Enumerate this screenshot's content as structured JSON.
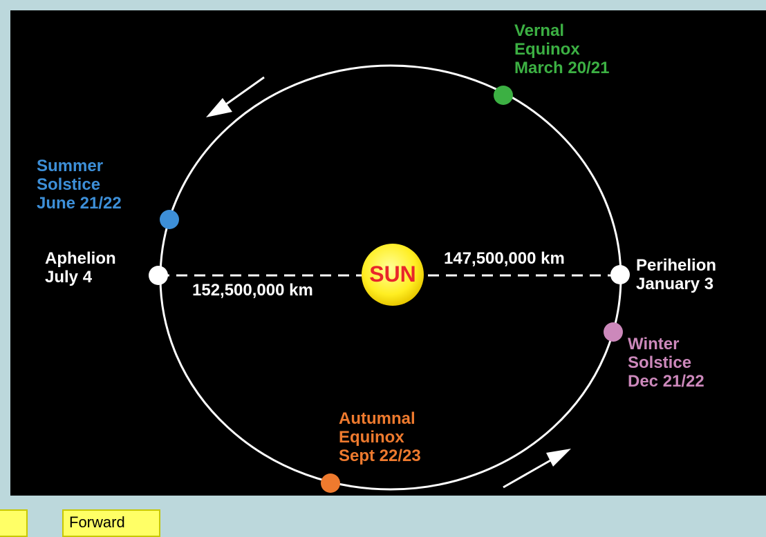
{
  "title": "SUN",
  "distances": {
    "aphelion": "152,500,000 km",
    "perihelion": "147,500,000 km"
  },
  "points": [
    {
      "lines": [
        "Vernal",
        "Equinox",
        "March 20/21"
      ],
      "color": "#3cb043"
    },
    {
      "lines": [
        "Summer",
        "Solstice",
        "June 21/22"
      ],
      "color": "#3d8fd8"
    },
    {
      "lines": [
        "Aphelion",
        "July 4"
      ],
      "color": "#ffffff"
    },
    {
      "lines": [
        "Perihelion",
        "January 3"
      ],
      "color": "#ffffff"
    },
    {
      "lines": [
        "Winter",
        "Solstice",
        "Dec 21/22"
      ],
      "color": "#cc88bb"
    },
    {
      "lines": [
        "Autumnal",
        "Equinox",
        "Sept 22/23"
      ],
      "color": "#ee7a2e"
    }
  ],
  "button": "Forward"
}
